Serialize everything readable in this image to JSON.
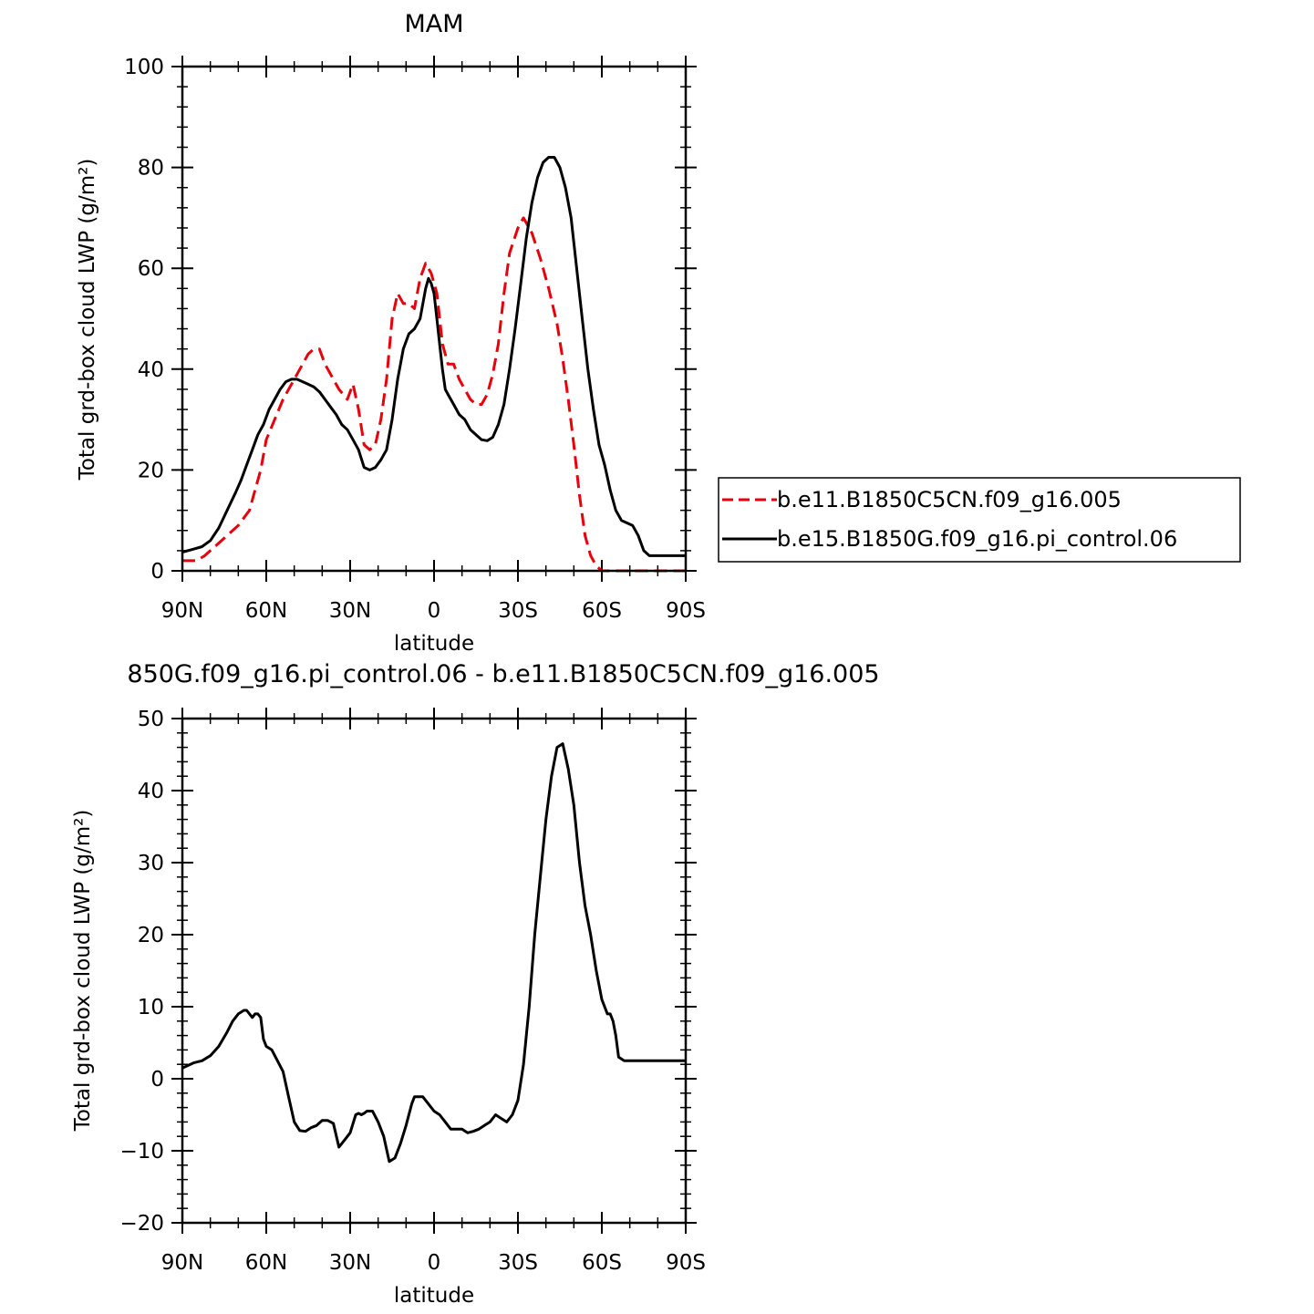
{
  "chart_data": [
    {
      "type": "line",
      "title": "MAM",
      "xlabel": "latitude",
      "ylabel": "Total grd-box cloud LWP (g/m²)",
      "xlim": [
        90,
        -90
      ],
      "ylim": [
        0,
        100
      ],
      "x_ticks": [
        {
          "value": 90,
          "label": "90N"
        },
        {
          "value": 60,
          "label": "60N"
        },
        {
          "value": 30,
          "label": "30N"
        },
        {
          "value": 0,
          "label": "0"
        },
        {
          "value": -30,
          "label": "30S"
        },
        {
          "value": -60,
          "label": "60S"
        },
        {
          "value": -90,
          "label": "90S"
        }
      ],
      "y_ticks": [
        {
          "value": 0,
          "label": "0"
        },
        {
          "value": 20,
          "label": "20"
        },
        {
          "value": 40,
          "label": "40"
        },
        {
          "value": 60,
          "label": "60"
        },
        {
          "value": 80,
          "label": "80"
        },
        {
          "value": 100,
          "label": "100"
        }
      ],
      "legend_position": "outside-right",
      "series": [
        {
          "name": "b.e11.B1850C5CN.f09_g16.005",
          "color": "#e8000b",
          "dash": "dashed",
          "x": [
            90,
            85,
            82,
            78,
            74,
            70,
            66,
            64,
            62,
            60,
            57,
            54,
            50,
            47,
            45,
            43,
            41,
            39,
            37,
            34,
            31,
            29,
            27,
            25,
            23,
            21,
            19,
            17,
            15,
            13,
            11,
            9,
            7,
            5,
            3,
            1,
            -1,
            -3,
            -5,
            -7,
            -9,
            -11,
            -13,
            -15,
            -17,
            -19,
            -21,
            -23,
            -25,
            -27,
            -30,
            -32,
            -35,
            -38,
            -41,
            -44,
            -46,
            -48,
            -50,
            -52,
            -54,
            -56,
            -58,
            -60,
            -62,
            -64,
            -66,
            -68,
            -70,
            -72,
            -74,
            -76,
            -80,
            -85,
            -90
          ],
          "y": [
            2,
            2,
            3,
            5,
            7,
            9,
            12,
            16,
            20,
            26,
            30,
            34,
            38,
            41,
            43,
            44,
            44,
            41,
            39,
            36,
            34,
            37,
            32,
            25,
            24,
            25,
            30,
            38,
            50,
            55,
            53,
            53,
            52,
            58,
            61,
            59,
            55,
            45,
            41,
            41,
            38,
            36,
            34,
            33,
            33,
            35,
            39,
            45,
            55,
            63,
            68,
            70,
            67,
            62,
            56,
            49,
            42,
            34,
            25,
            15,
            7,
            3,
            1,
            0,
            0,
            0,
            0,
            0,
            0,
            0,
            0,
            0,
            0,
            0,
            0
          ]
        },
        {
          "name": "b.e15.B1850G.f09_g16.pi_control.06",
          "color": "#000000",
          "dash": "solid",
          "x": [
            90,
            86,
            83,
            80,
            77,
            74,
            71,
            69,
            67,
            65,
            63,
            61,
            59,
            57,
            55,
            53,
            51,
            49,
            47,
            45,
            43,
            41,
            39,
            37,
            35,
            33,
            31,
            29,
            27,
            25,
            23,
            21,
            19,
            17,
            15,
            13,
            11,
            9,
            7,
            5,
            3,
            2,
            1,
            0,
            -1,
            -2,
            -3,
            -4,
            -5,
            -7,
            -9,
            -11,
            -13,
            -15,
            -17,
            -19,
            -21,
            -23,
            -25,
            -27,
            -29,
            -31,
            -33,
            -35,
            -37,
            -39,
            -41,
            -43,
            -45,
            -47,
            -49,
            -51,
            -53,
            -55,
            -57,
            -59,
            -61,
            -63,
            -65,
            -67,
            -69,
            -71,
            -73,
            -75,
            -77,
            -79,
            -81,
            -83,
            -85,
            -87,
            -89,
            -90
          ],
          "y": [
            3.7,
            4.3,
            4.8,
            6,
            8.5,
            12,
            15.5,
            18,
            21,
            24,
            27,
            29,
            32,
            34,
            36,
            37.5,
            38,
            38,
            37.5,
            37,
            36.5,
            35.5,
            34,
            32.5,
            31,
            29,
            28,
            26,
            24,
            20.5,
            20,
            20.5,
            22,
            24,
            30,
            38,
            44,
            47,
            48,
            50,
            56,
            58,
            57,
            55,
            50,
            45,
            40,
            36,
            35,
            33,
            31,
            30,
            28,
            27,
            26,
            25.8,
            26.5,
            29,
            33,
            40,
            48,
            57,
            66,
            73,
            78,
            81,
            82,
            82,
            80,
            76,
            70,
            60,
            50,
            40,
            32,
            25,
            21,
            16,
            12,
            10,
            9.5,
            9,
            7,
            4,
            3,
            3,
            3,
            3,
            3,
            3,
            3,
            3
          ]
        }
      ]
    },
    {
      "type": "line",
      "title": "850G.f09_g16.pi_control.06 - b.e11.B1850C5CN.f09_g16.005",
      "xlabel": "latitude",
      "ylabel": "Total grd-box cloud LWP (g/m²)",
      "xlim": [
        90,
        -90
      ],
      "ylim": [
        -20,
        50
      ],
      "x_ticks": [
        {
          "value": 90,
          "label": "90N"
        },
        {
          "value": 60,
          "label": "60N"
        },
        {
          "value": 30,
          "label": "30N"
        },
        {
          "value": 0,
          "label": "0"
        },
        {
          "value": -30,
          "label": "30S"
        },
        {
          "value": -60,
          "label": "60S"
        },
        {
          "value": -90,
          "label": "90S"
        }
      ],
      "y_ticks": [
        {
          "value": -20,
          "label": "−20"
        },
        {
          "value": -10,
          "label": "−10"
        },
        {
          "value": 0,
          "label": "0"
        },
        {
          "value": 10,
          "label": "10"
        },
        {
          "value": 20,
          "label": "20"
        },
        {
          "value": 30,
          "label": "30"
        },
        {
          "value": 40,
          "label": "40"
        },
        {
          "value": 50,
          "label": "50"
        }
      ],
      "series": [
        {
          "color": "#000000",
          "dash": "solid",
          "x": [
            90,
            86,
            83,
            80,
            77,
            74,
            72,
            70,
            68,
            67,
            66,
            65,
            64,
            63,
            62,
            61,
            60,
            58,
            56,
            54,
            52,
            50,
            48,
            46,
            44,
            42,
            40,
            38,
            36,
            34,
            32,
            30,
            28,
            27,
            26,
            25,
            24,
            22,
            20,
            18,
            16,
            14,
            12,
            10,
            9,
            8,
            7,
            6,
            4,
            2,
            0,
            -2,
            -4,
            -6,
            -8,
            -10,
            -12,
            -14,
            -16,
            -18,
            -20,
            -22,
            -24,
            -26,
            -28,
            -30,
            -32,
            -34,
            -36,
            -38,
            -40,
            -42,
            -44,
            -46,
            -48,
            -50,
            -52,
            -54,
            -56,
            -58,
            -60,
            -62,
            -63,
            -64,
            -65,
            -66,
            -68,
            -70,
            -72,
            -74,
            -76,
            -78,
            -80,
            -82,
            -84,
            -86,
            -88,
            -90
          ],
          "y": [
            1.5,
            2.2,
            2.5,
            3.2,
            4.5,
            6.5,
            8,
            9,
            9.5,
            9.5,
            9,
            8.5,
            9,
            9,
            8.5,
            5.5,
            4.5,
            4,
            2.5,
            1,
            -2.5,
            -6,
            -7.2,
            -7.3,
            -6.8,
            -6.5,
            -5.8,
            -5.8,
            -6.2,
            -9.5,
            -8.5,
            -7.5,
            -5,
            -4.8,
            -5,
            -4.8,
            -4.5,
            -4.5,
            -6,
            -8,
            -11.5,
            -11,
            -9,
            -6.5,
            -5,
            -3.5,
            -2.5,
            -2.5,
            -2.5,
            -3.5,
            -4.5,
            -5,
            -6,
            -7,
            -7,
            -7,
            -7.5,
            -7.3,
            -7,
            -6.5,
            -6,
            -5,
            -5.5,
            -6,
            -5,
            -3,
            2,
            10,
            20,
            28,
            36,
            42,
            46,
            46.5,
            43,
            38,
            30,
            24,
            20,
            15,
            11,
            9,
            9,
            8,
            6,
            3,
            2.5,
            2.5,
            2.5,
            2.5,
            2.5,
            2.5,
            2.5,
            2.5,
            2.5,
            2.5,
            2.5,
            2.5
          ]
        }
      ]
    }
  ]
}
